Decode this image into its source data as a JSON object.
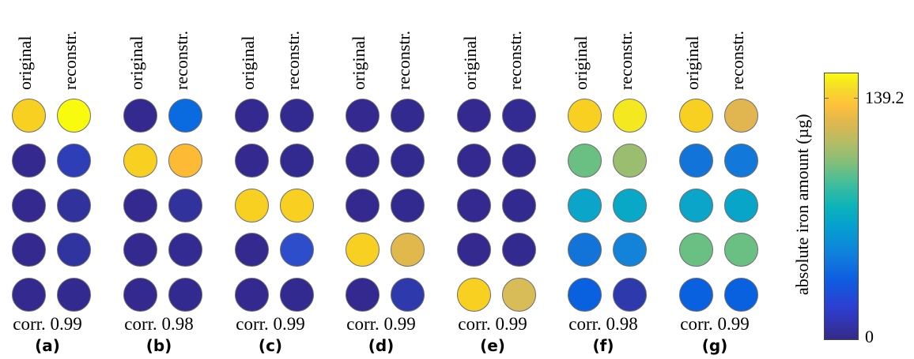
{
  "column_labels": {
    "original": "original",
    "reconstructed": "reconstr."
  },
  "panels": [
    {
      "id": "(a)",
      "corr": "corr. 0.99",
      "original": [
        "#f7d022",
        "#33298e",
        "#33298e",
        "#33298e",
        "#33298e"
      ],
      "reconstructed": [
        "#f9fb0e",
        "#2d3eb6",
        "#31329c",
        "#30349f",
        "#332a90"
      ]
    },
    {
      "id": "(b)",
      "corr": "corr. 0.98",
      "original": [
        "#33298e",
        "#f7d022",
        "#33298e",
        "#33298e",
        "#33298e"
      ],
      "reconstructed": [
        "#0a6ae0",
        "#fdbb35",
        "#31329c",
        "#332b92",
        "#332a90"
      ]
    },
    {
      "id": "(c)",
      "corr": "corr. 0.99",
      "original": [
        "#33298e",
        "#33298e",
        "#f7d022",
        "#33298e",
        "#33298e"
      ],
      "reconstructed": [
        "#332a90",
        "#332a90",
        "#f7d022",
        "#2d4dcb",
        "#332a90"
      ]
    },
    {
      "id": "(d)",
      "corr": "corr. 0.99",
      "original": [
        "#33298e",
        "#33298e",
        "#33298e",
        "#f7d022",
        "#33298e"
      ],
      "reconstructed": [
        "#332a90",
        "#332a90",
        "#332a90",
        "#e1b84c",
        "#2e3aab"
      ]
    },
    {
      "id": "(e)",
      "corr": "corr. 0.99",
      "original": [
        "#33298e",
        "#33298e",
        "#33298e",
        "#33298e",
        "#f7d022"
      ],
      "reconstructed": [
        "#332b92",
        "#332a90",
        "#332a90",
        "#332a90",
        "#d8bc58"
      ]
    },
    {
      "id": "(f)",
      "corr": "corr. 0.98",
      "original": [
        "#f7d022",
        "#6abf83",
        "#0aa5c9",
        "#1273d9",
        "#0961e0"
      ],
      "reconstructed": [
        "#f4e820",
        "#9bbd70",
        "#08a8c6",
        "#1283d9",
        "#2e3aab"
      ]
    },
    {
      "id": "(g)",
      "corr": "corr. 0.99",
      "original": [
        "#f7d022",
        "#1273d9",
        "#0aa5c9",
        "#6abf83",
        "#0961e0"
      ],
      "reconstructed": [
        "#e1b54f",
        "#1278d9",
        "#08a5c9",
        "#6abf83",
        "#0961e0"
      ]
    }
  ],
  "colorbar": {
    "title": "absolute iron amount (µg)",
    "max_label": "139.2",
    "min_label": "0"
  }
}
